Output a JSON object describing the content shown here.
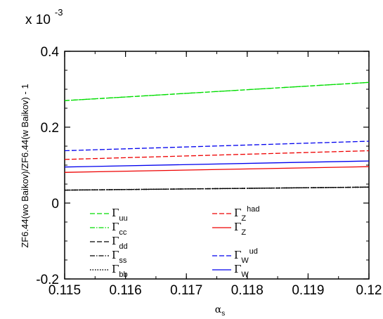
{
  "chart_data": {
    "type": "line",
    "multiplier": {
      "base": "x 10",
      "exponent": "-3"
    },
    "xlabel": {
      "symbol": "α",
      "sub": "s"
    },
    "ylabel": "ZF6.44(wo Baikov)/ZF6.44(w Baikov) - 1",
    "xlim": [
      0.115,
      0.12
    ],
    "ylim": [
      -0.2,
      0.4
    ],
    "x_ticks": [
      {
        "value": 0.115,
        "label": "0.115"
      },
      {
        "value": 0.116,
        "label": "0.116"
      },
      {
        "value": 0.117,
        "label": "0.117"
      },
      {
        "value": 0.118,
        "label": "0.118"
      },
      {
        "value": 0.119,
        "label": "0.119"
      },
      {
        "value": 0.12,
        "label": "0.12"
      }
    ],
    "y_ticks": [
      {
        "value": -0.2,
        "label": "-0.2"
      },
      {
        "value": 0,
        "label": "0"
      },
      {
        "value": 0.2,
        "label": "0.2"
      },
      {
        "value": 0.4,
        "label": "0.4"
      }
    ],
    "grid": false,
    "x": [
      0.115,
      0.12
    ],
    "series": [
      {
        "key": "uu",
        "sym": "Γ",
        "sub": "uu",
        "sup": "",
        "values": [
          0.27,
          0.318
        ],
        "color": "#00dd00",
        "dash": "7,3",
        "width": 1.3
      },
      {
        "key": "cc",
        "sym": "Γ",
        "sub": "cc",
        "sup": "",
        "values": [
          0.27,
          0.318
        ],
        "color": "#00dd00",
        "dash": "7,2,1.5,2",
        "width": 1.3
      },
      {
        "key": "dd",
        "sym": "Γ",
        "sub": "dd",
        "sup": "",
        "values": [
          0.034,
          0.042
        ],
        "color": "#000000",
        "dash": "7,3",
        "width": 1.3
      },
      {
        "key": "ss",
        "sym": "Γ",
        "sub": "ss",
        "sup": "",
        "values": [
          0.034,
          0.042
        ],
        "color": "#000000",
        "dash": "7,2,1.5,2",
        "width": 1.3
      },
      {
        "key": "bb",
        "sym": "Γ",
        "sub": "bb",
        "sup": "",
        "values": [
          0.034,
          0.042
        ],
        "color": "#000000",
        "dash": "1.5,2",
        "width": 1.6
      },
      {
        "key": "zhad",
        "sym": "Γ",
        "sub": "Z",
        "sup": "had",
        "values": [
          0.115,
          0.138
        ],
        "color": "#ee0000",
        "dash": "7,3",
        "width": 1.3
      },
      {
        "key": "z",
        "sym": "Γ",
        "sub": "Z",
        "sup": "",
        "values": [
          0.081,
          0.096
        ],
        "color": "#ee0000",
        "dash": "",
        "width": 1.3
      },
      {
        "key": "wud",
        "sym": "Γ",
        "sub": "W",
        "sup": "ud",
        "values": [
          0.138,
          0.163
        ],
        "color": "#0000ee",
        "dash": "7,3",
        "width": 1.3
      },
      {
        "key": "w",
        "sym": "Γ",
        "sub": "W",
        "sup": "",
        "values": [
          0.095,
          0.111
        ],
        "color": "#0000ee",
        "dash": "",
        "width": 1.3
      }
    ],
    "legend": {
      "placement": "lower-left inside plot, two columns",
      "columns": [
        [
          "uu",
          "cc",
          "dd",
          "ss",
          "bb"
        ],
        [
          "zhad",
          "z",
          "",
          "wud",
          "w"
        ]
      ]
    }
  }
}
